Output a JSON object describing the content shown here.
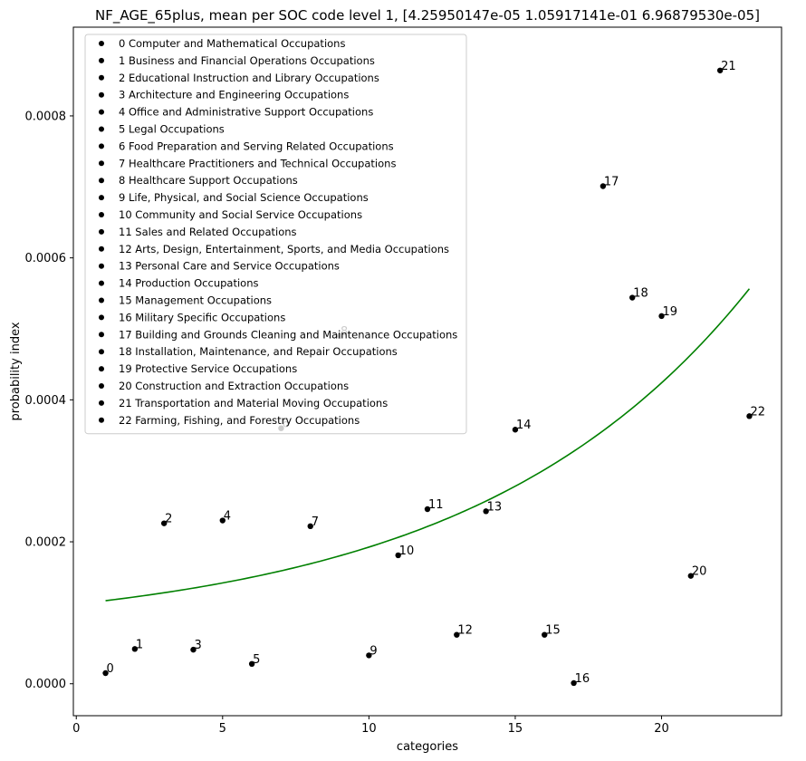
{
  "chart_data": {
    "type": "scatter",
    "title": "NF_AGE_65plus, mean per SOC code level 1, [4.25950147e-05 1.05917141e-01 6.96879530e-05]",
    "xlabel": "categories",
    "ylabel": "probability index",
    "xlim": [
      -0.1,
      24.1
    ],
    "ylim": [
      -4.5e-05,
      0.000925
    ],
    "xticks": [
      0,
      5,
      10,
      15,
      20
    ],
    "yticks": [
      0.0,
      0.0002,
      0.0004,
      0.0006,
      0.0008
    ],
    "ytick_labels": [
      "0.0000",
      "0.0002",
      "0.0004",
      "0.0006",
      "0.0008"
    ],
    "legend_position": "upper-left",
    "point_color": "#000000",
    "fit_color": "#008000",
    "points": [
      {
        "x": 1,
        "y": 1.5e-05,
        "label": "0",
        "legend": "0 Computer and Mathematical Occupations"
      },
      {
        "x": 2,
        "y": 4.9e-05,
        "label": "1",
        "legend": "1 Business and Financial Operations Occupations"
      },
      {
        "x": 3,
        "y": 0.000226,
        "label": "2",
        "legend": "2 Educational Instruction and Library Occupations"
      },
      {
        "x": 4,
        "y": 4.8e-05,
        "label": "3",
        "legend": "3 Architecture and Engineering Occupations"
      },
      {
        "x": 5,
        "y": 0.00023,
        "label": "4",
        "legend": "4 Office and Administrative Support Occupations"
      },
      {
        "x": 6,
        "y": 2.8e-05,
        "label": "5",
        "legend": "5 Legal Occupations"
      },
      {
        "x": 7,
        "y": 0.00036,
        "label": "6",
        "legend": "6 Food Preparation and Serving Related Occupations"
      },
      {
        "x": 8,
        "y": 0.000222,
        "label": "7",
        "legend": "7 Healthcare Practitioners and Technical Occupations"
      },
      {
        "x": 9,
        "y": 0.00049,
        "label": "8",
        "legend": "8 Healthcare Support Occupations"
      },
      {
        "x": 10,
        "y": 4e-05,
        "label": "9",
        "legend": "9 Life, Physical, and Social Science Occupations"
      },
      {
        "x": 11,
        "y": 0.000181,
        "label": "10",
        "legend": "10 Community and Social Service Occupations"
      },
      {
        "x": 12,
        "y": 0.000246,
        "label": "11",
        "legend": "11 Sales and Related Occupations"
      },
      {
        "x": 13,
        "y": 6.9e-05,
        "label": "12",
        "legend": "12 Arts, Design, Entertainment, Sports, and Media Occupations"
      },
      {
        "x": 14,
        "y": 0.000243,
        "label": "13",
        "legend": "13 Personal Care and Service Occupations"
      },
      {
        "x": 15,
        "y": 0.000358,
        "label": "14",
        "legend": "14 Production Occupations"
      },
      {
        "x": 16,
        "y": 6.9e-05,
        "label": "15",
        "legend": "15 Management Occupations"
      },
      {
        "x": 17,
        "y": 1e-06,
        "label": "16",
        "legend": "16 Military Specific Occupations"
      },
      {
        "x": 18,
        "y": 0.000701,
        "label": "17",
        "legend": "17 Building and Grounds Cleaning and Maintenance Occupations"
      },
      {
        "x": 19,
        "y": 0.000544,
        "label": "18",
        "legend": "18 Installation, Maintenance, and Repair Occupations"
      },
      {
        "x": 20,
        "y": 0.000518,
        "label": "19",
        "legend": "19 Protective Service Occupations"
      },
      {
        "x": 21,
        "y": 0.000152,
        "label": "20",
        "legend": "20 Construction and Extraction Occupations"
      },
      {
        "x": 22,
        "y": 0.000864,
        "label": "21",
        "legend": "21 Transportation and Material Moving Occupations"
      },
      {
        "x": 23,
        "y": 0.000377,
        "label": "22",
        "legend": "22 Farming, Fishing, and Forestry Occupations"
      }
    ],
    "fit": {
      "a": 4.25950147e-05,
      "b": 0.105917141,
      "c": 6.9687953e-05,
      "x_range": [
        1,
        23
      ]
    }
  }
}
